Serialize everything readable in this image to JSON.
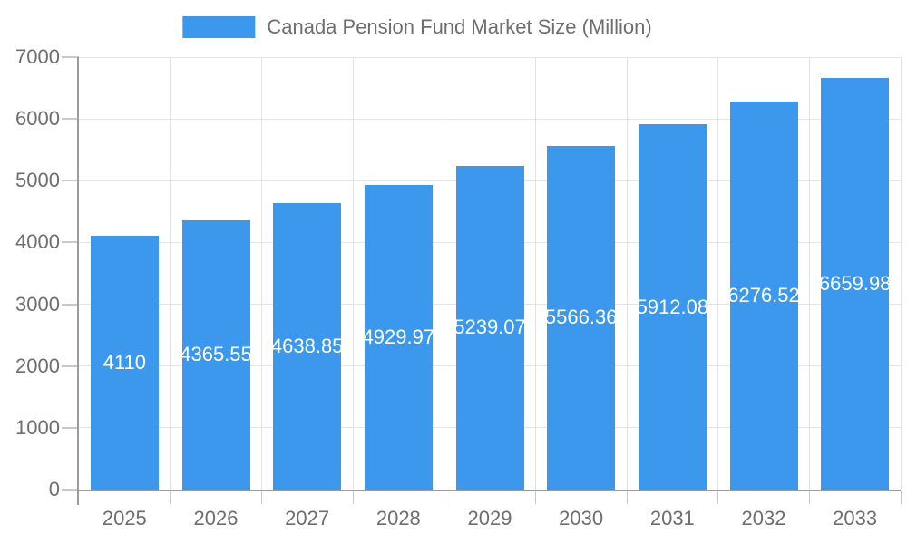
{
  "legend": {
    "label": "Canada Pension Fund Market Size (Million)"
  },
  "colors": {
    "bar": "#3B98EC",
    "axis_text": "#6E6E6E",
    "grid": "#E4E4E4",
    "axis_line": "#9B9B9B",
    "tick": "#C9C9C9",
    "bar_label": "#FFFFFF",
    "background": "#FFFFFF"
  },
  "chart_data": {
    "type": "bar",
    "title": "Canada Pension Fund Market Size (Million)",
    "categories": [
      "2025",
      "2026",
      "2027",
      "2028",
      "2029",
      "2030",
      "2031",
      "2032",
      "2033"
    ],
    "values": [
      4110,
      4365.55,
      4638.85,
      4929.97,
      5239.07,
      5566.36,
      5912.08,
      6276.52,
      6659.98
    ],
    "value_labels": [
      "4110",
      "4365.55",
      "4638.85",
      "4929.97",
      "5239.07",
      "5566.36",
      "5912.08",
      "6276.52",
      "6659.98"
    ],
    "xlabel": "",
    "ylabel": "",
    "ylim": [
      0,
      7000
    ],
    "y_ticks": [
      0,
      1000,
      2000,
      3000,
      4000,
      5000,
      6000,
      7000
    ],
    "y_tick_labels": [
      "0",
      "1000",
      "2000",
      "3000",
      "4000",
      "5000",
      "6000",
      "7000"
    ],
    "grid": true,
    "legend_position": "top"
  }
}
